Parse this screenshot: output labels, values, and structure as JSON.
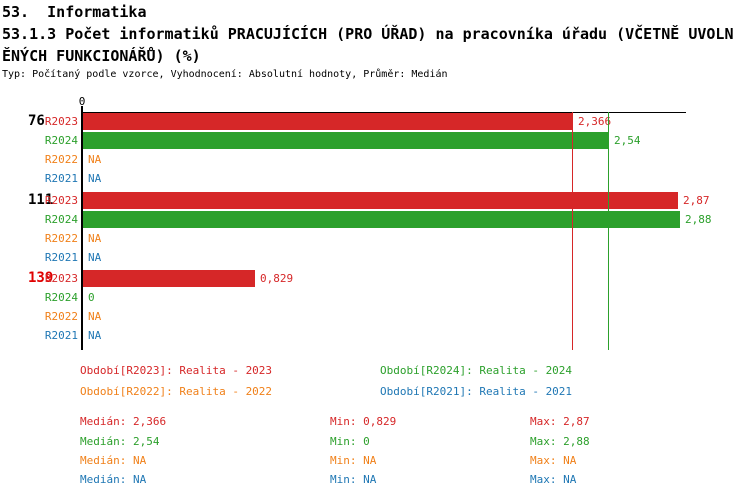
{
  "header": {
    "title_line1": "53.  Informatika",
    "title_line2": "53.1.3 Počet informatiků PRACUJÍCÍCH (PRO ÚŘAD) na pracovníka úřadu (VČETNĚ UVOLN",
    "title_line3": "ĚNÝCH FUNKCIONÁŘŮ) (%)",
    "meta": "Typ: Počítaný podle vzorce, Vyhodnocení: Absolutní hodnoty, Průměr: Medián"
  },
  "colors": {
    "R2023": "#d62728",
    "R2024": "#2ca02c",
    "R2022": "#f08019",
    "R2021": "#1f77b4",
    "group_highlight": "#e00000",
    "axis": "#000000"
  },
  "chart_data": {
    "type": "bar",
    "orientation": "horizontal",
    "title": "53.1.3 Počet informatiků PRACUJÍCÍCH (PRO ÚŘAD) na pracovníka úřadu (VČETNĚ UVOLNĚNÝCH FUNKCIONÁŘŮ) (%)",
    "xlabel": "",
    "ylabel": "",
    "xlim": [
      0,
      2.92
    ],
    "axis_tick_labels": [
      "0"
    ],
    "grid": false,
    "series_names": [
      "R2023",
      "R2024",
      "R2022",
      "R2021"
    ],
    "groups": [
      {
        "label": "76",
        "highlight": false,
        "rows": [
          {
            "series": "R2023",
            "value": 2.366,
            "value_label": "2,366"
          },
          {
            "series": "R2024",
            "value": 2.54,
            "value_label": "2,54"
          },
          {
            "series": "R2022",
            "value": null,
            "value_label": "NA"
          },
          {
            "series": "R2021",
            "value": null,
            "value_label": "NA"
          }
        ]
      },
      {
        "label": "111",
        "highlight": false,
        "rows": [
          {
            "series": "R2023",
            "value": 2.87,
            "value_label": "2,87"
          },
          {
            "series": "R2024",
            "value": 2.88,
            "value_label": "2,88"
          },
          {
            "series": "R2022",
            "value": null,
            "value_label": "NA"
          },
          {
            "series": "R2021",
            "value": null,
            "value_label": "NA"
          }
        ]
      },
      {
        "label": "139",
        "highlight": true,
        "rows": [
          {
            "series": "R2023",
            "value": 0.829,
            "value_label": "0,829"
          },
          {
            "series": "R2024",
            "value": 0,
            "value_label": "0"
          },
          {
            "series": "R2022",
            "value": null,
            "value_label": "NA"
          },
          {
            "series": "R2021",
            "value": null,
            "value_label": "NA"
          }
        ]
      }
    ],
    "median_lines": [
      {
        "series": "R2023",
        "value": 2.366,
        "color": "#d62728"
      },
      {
        "series": "R2024",
        "value": 2.54,
        "color": "#2ca02c"
      }
    ]
  },
  "legend": {
    "items": [
      {
        "series": "R2023",
        "label": "Období[R2023]: Realita - 2023"
      },
      {
        "series": "R2024",
        "label": "Období[R2024]: Realita - 2024"
      },
      {
        "series": "R2022",
        "label": "Období[R2022]: Realita - 2022"
      },
      {
        "series": "R2021",
        "label": "Období[R2021]: Realita - 2021"
      }
    ]
  },
  "stats": {
    "labels": {
      "median": "Medián:",
      "min": "Min:",
      "max": "Max:"
    },
    "rows": [
      {
        "series": "R2023",
        "median": "2,366",
        "min": "0,829",
        "max": "2,87"
      },
      {
        "series": "R2024",
        "median": "2,54",
        "min": "0",
        "max": "2,88"
      },
      {
        "series": "R2022",
        "median": "NA",
        "min": "NA",
        "max": "NA"
      },
      {
        "series": "R2021",
        "median": "NA",
        "min": "NA",
        "max": "NA"
      }
    ]
  }
}
